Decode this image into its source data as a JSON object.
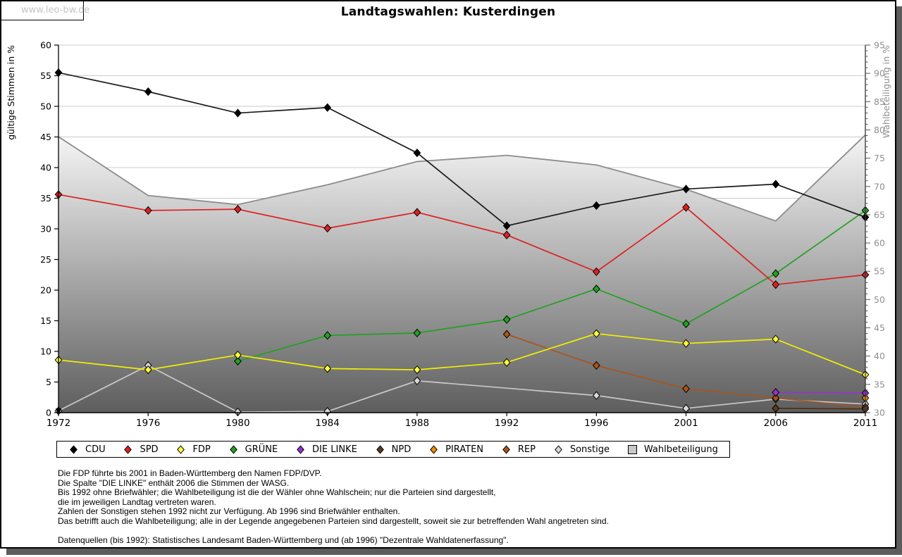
{
  "watermark": "www.leo-bw.de",
  "title": "Landtagswahlen: Kusterdingen",
  "chart_data": {
    "type": "line",
    "title": "Landtagswahlen: Kusterdingen",
    "x": [
      "1972",
      "1976",
      "1980",
      "1984",
      "1988",
      "1992",
      "1996",
      "2001",
      "2006",
      "2011"
    ],
    "ylabel_left": "gültige Stimmen in %",
    "ylabel_right": "Wahlbeteiligung in %",
    "ylim_left": [
      0,
      60
    ],
    "ylim_right": [
      30,
      95
    ],
    "ytick_step": 5,
    "grid": true,
    "legend_position": "bottom",
    "series": [
      {
        "name": "CDU",
        "color": "#000000",
        "line": "#1a1a1a",
        "axis": "left",
        "values": [
          55.5,
          52.4,
          48.9,
          49.8,
          42.4,
          30.5,
          33.8,
          36.5,
          37.3,
          31.9
        ]
      },
      {
        "name": "SPD",
        "color": "#dd2020",
        "line": "#dd2020",
        "axis": "left",
        "values": [
          35.6,
          33.0,
          33.2,
          30.1,
          32.7,
          29.0,
          23.0,
          33.5,
          20.9,
          22.5
        ]
      },
      {
        "name": "FDP",
        "color": "#ffff40",
        "line": "#f0f000",
        "axis": "left",
        "values": [
          8.6,
          7.0,
          9.4,
          7.2,
          7.0,
          8.2,
          12.9,
          11.3,
          12.0,
          6.2
        ]
      },
      {
        "name": "GRÜNE",
        "color": "#21a121",
        "line": "#21a121",
        "axis": "left",
        "values": [
          null,
          null,
          8.4,
          12.6,
          13.0,
          15.2,
          20.2,
          14.5,
          22.7,
          33.0
        ]
      },
      {
        "name": "DIE LINKE",
        "color": "#9b30d0",
        "line": "#9b30d0",
        "axis": "left",
        "values": [
          null,
          null,
          null,
          null,
          null,
          null,
          null,
          null,
          3.3,
          3.2
        ]
      },
      {
        "name": "NPD",
        "color": "#5d3a1a",
        "line": "#4f3010",
        "axis": "left",
        "values": [
          null,
          null,
          null,
          null,
          null,
          null,
          null,
          null,
          0.7,
          0.6
        ]
      },
      {
        "name": "PIRATEN",
        "color": "#ef8a00",
        "line": "#ef8a00",
        "axis": "left",
        "values": [
          null,
          null,
          null,
          null,
          null,
          null,
          null,
          null,
          null,
          2.4
        ]
      },
      {
        "name": "REP",
        "color": "#a9541c",
        "line": "#a9541c",
        "axis": "left",
        "values": [
          null,
          null,
          null,
          null,
          null,
          12.8,
          7.7,
          3.9,
          2.4,
          0.9
        ]
      },
      {
        "name": "Sonstige",
        "color": "#d9d9d9",
        "line": "#c9c9c9",
        "axis": "left",
        "values": [
          0.3,
          7.7,
          0.1,
          0.2,
          5.2,
          null,
          2.8,
          0.7,
          2.2,
          1.4
        ]
      }
    ],
    "area_series": {
      "name": "Wahlbeteiligung",
      "axis": "right",
      "border_color": "#8c8c8c",
      "fill_top": "#f6f6f6",
      "fill_bottom": "#5e5e5e",
      "values": [
        78.8,
        68.4,
        66.8,
        70.3,
        74.4,
        75.5,
        73.8,
        69.5,
        63.9,
        79.1
      ]
    }
  },
  "legend": {
    "items": [
      {
        "label": "CDU",
        "marker": "diamond",
        "color": "#000000"
      },
      {
        "label": "SPD",
        "marker": "diamond",
        "color": "#dd2020"
      },
      {
        "label": "FDP",
        "marker": "diamond",
        "color": "#ffff40"
      },
      {
        "label": "GRÜNE",
        "marker": "diamond",
        "color": "#21a121"
      },
      {
        "label": "DIE LINKE",
        "marker": "diamond",
        "color": "#9b30d0"
      },
      {
        "label": "NPD",
        "marker": "diamond",
        "color": "#5d3a1a"
      },
      {
        "label": "PIRATEN",
        "marker": "diamond",
        "color": "#ef8a00"
      },
      {
        "label": "REP",
        "marker": "diamond",
        "color": "#a9541c"
      },
      {
        "label": "Sonstige",
        "marker": "diamond",
        "color": "#d9d9d9"
      },
      {
        "label": "Wahlbeteiligung",
        "marker": "square",
        "color": "#c8c8c8"
      }
    ]
  },
  "footnotes": [
    "Die FDP führte bis 2001 in Baden-Württemberg den Namen FDP/DVP.",
    "Die Spalte \"DIE LINKE\" enthält 2006 die Stimmen der WASG.",
    "Bis 1992 ohne Briefwähler; die Wahlbeteiligung ist die der Wähler ohne Wahlschein; nur die Parteien sind dargestellt,",
    "die im jeweiligen Landtag vertreten waren.",
    "Zahlen der Sonstigen stehen 1992 nicht zur Verfügung. Ab 1996 sind Briefwähler enthalten.",
    "Das betrifft auch die Wahlbeteiligung; alle in der Legende angegebenen Parteien sind dargestellt, soweit sie zur betreffenden Wahl angetreten sind.",
    "Datenquellen (bis 1992): Statistisches Landesamt Baden-Württemberg und (ab 1996) \"Dezentrale Wahldatenerfassung\"."
  ],
  "colors": {
    "grid": "#cbcbcb",
    "axis": "#000000",
    "right_axis_text": "#8f8f8f",
    "watermark_text": "#c4c4c4"
  }
}
